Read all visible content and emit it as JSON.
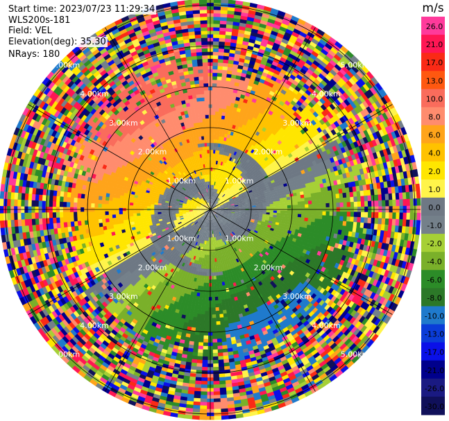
{
  "header": {
    "start_time": "Start time: 2023/07/23 11:29:34",
    "instrument": "WLS200s-181",
    "field": "Field: VEL",
    "elevation": "Elevation(deg): 35.30",
    "nrays": "NRays: 180"
  },
  "chart_data": {
    "type": "ppi",
    "field": "VEL",
    "units": "m/s",
    "range_ring_labels": [
      "1.00km",
      "2.00km",
      "3.00km",
      "4.00km",
      "5.00km"
    ],
    "range_rings_km": [
      1,
      2,
      3,
      4,
      5
    ],
    "max_range_km": 5.2,
    "spokes_deg": [
      0,
      30,
      60,
      90,
      120,
      150,
      180,
      210,
      240,
      270,
      300,
      330
    ],
    "colorbar": {
      "title": "m/s",
      "tick_labels": [
        "26.0",
        "21.0",
        "17.0",
        "13.0",
        "10.0",
        "8.0",
        "6.0",
        "4.0",
        "2.0",
        "1.0",
        "0.0",
        "-1.0",
        "-2.0",
        "-4.0",
        "-6.0",
        "-8.0",
        "-10.0",
        "-13.0",
        "-17.0",
        "-21.0",
        "-26.0",
        "-30.0"
      ],
      "colors": [
        "#ff3a9b",
        "#ff1654",
        "#fa2a16",
        "#ff5810",
        "#fa6c5c",
        "#ff8c6e",
        "#ffa41a",
        "#ffc200",
        "#ffe600",
        "#fff44a",
        "#6e7884",
        "#74808a",
        "#a6d036",
        "#7ab02a",
        "#2c8c28",
        "#2c7828",
        "#1f7acc",
        "#0a3cd8",
        "#0a10e8",
        "#00008c",
        "#1a1a82",
        "#10105a"
      ]
    }
  }
}
